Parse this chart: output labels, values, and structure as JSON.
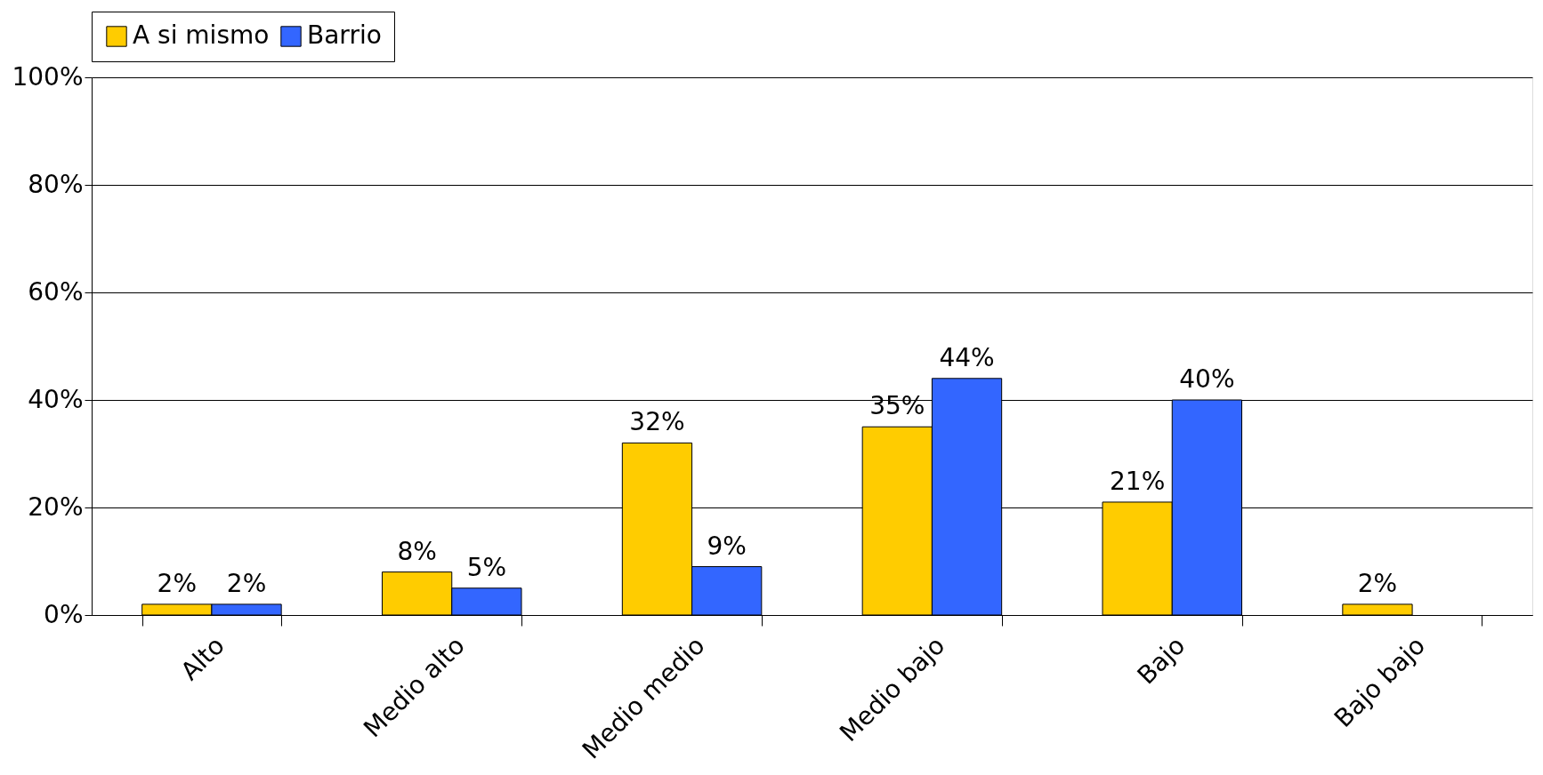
{
  "chart_data": {
    "type": "bar",
    "categories": [
      "Alto",
      "Medio alto",
      "Medio medio",
      "Medio bajo",
      "Bajo",
      "Bajo bajo"
    ],
    "series": [
      {
        "name": "A si mismo",
        "color": "#ffcc00",
        "values": [
          2,
          8,
          32,
          35,
          21,
          2
        ],
        "value_labels": [
          "2%",
          "8%",
          "32%",
          "35%",
          "21%",
          "2%"
        ]
      },
      {
        "name": "Barrio",
        "color": "#3366ff",
        "values": [
          2,
          5,
          9,
          44,
          40,
          null
        ],
        "value_labels": [
          "2%",
          "5%",
          "9%",
          "44%",
          "40%",
          null
        ]
      }
    ],
    "ylim": [
      0,
      100
    ],
    "yticks": [
      {
        "value": 0,
        "label": "0%"
      },
      {
        "value": 20,
        "label": "20%"
      },
      {
        "value": 40,
        "label": "40%"
      },
      {
        "value": 60,
        "label": "60%"
      },
      {
        "value": 80,
        "label": "80%"
      },
      {
        "value": 100,
        "label": "100%"
      }
    ],
    "grid": "y",
    "legend": "top"
  }
}
